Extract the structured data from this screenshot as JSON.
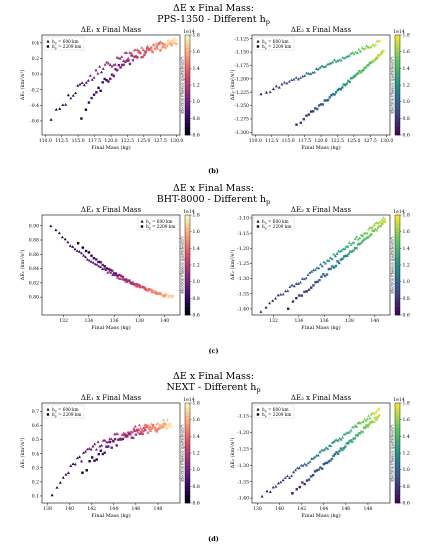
{
  "colormaps": {
    "e1": [
      "#000004",
      "#3b0f70",
      "#8c2981",
      "#de4968",
      "#fe9f6d",
      "#fcfdbf"
    ],
    "e2": [
      "#440154",
      "#3b528b",
      "#21918c",
      "#5ec962",
      "#fde725"
    ]
  },
  "panels": [
    {
      "id": "b",
      "title_line1": "ΔE x Final Mass:",
      "title_line2": "PPS-1350 - Different h",
      "title_sub": "p",
      "label": "(b)",
      "chart_data": [
        {
          "type": "scatter",
          "title": "ΔE₁ x Final Mass",
          "xlabel": "Final Mass (kg)",
          "ylabel": "ΔE₁ (km²/s²)",
          "colormap": "e1",
          "xlim": [
            109.5,
            130.5
          ],
          "ylim": [
            -0.78,
            0.5
          ],
          "xticks": [
            110,
            112.5,
            115,
            117.5,
            120,
            122.5,
            125,
            127.5,
            130
          ],
          "xtick_labels": [
            "110.0",
            "112.5",
            "115.0",
            "117.5",
            "120.0",
            "122.5",
            "125.0",
            "127.5",
            "130.0"
          ],
          "yticks": [
            -0.6,
            -0.4,
            -0.2,
            0,
            0.2,
            0.4
          ],
          "ytick_labels": [
            "-0.6",
            "-0.4",
            "-0.2",
            "0.0",
            "0.2",
            "0.4"
          ],
          "colorbar": {
            "label": "Electron Fluence (particles/m²)",
            "range": [
              0.6,
              1.8
            ],
            "ticks": [
              0.6,
              0.8,
              1.0,
              1.2,
              1.4,
              1.6,
              1.8
            ],
            "tick_labels": [
              "0.6",
              "0.8",
              "1.0",
              "1.2",
              "1.4",
              "1.6",
              "1.8"
            ],
            "exponent": "1e14"
          },
          "legend_position": "top-left",
          "series": [
            {
              "name": "h  = 600 km",
              "sub": "p",
              "marker": "triangle",
              "x0": 110.0,
              "x1": 130.0,
              "y0": -0.72,
              "y1": 0.42,
              "curve": 2.2,
              "noise": 0.04,
              "n": 72,
              "xstart": 110.5
            },
            {
              "name": "h  = 2209 km",
              "sub": "p",
              "marker": "square",
              "x0": 115.0,
              "x1": 130.0,
              "y0": -0.68,
              "y1": 0.4,
              "curve": 2.5,
              "noise": 0.04,
              "n": 60,
              "xstart": 115.2
            }
          ]
        },
        {
          "type": "scatter",
          "title": "ΔE₂ x Final Mass",
          "xlabel": "Final Mass (kg)",
          "ylabel": "ΔE₂ (km²/s²)",
          "colormap": "e2",
          "xlim": [
            109.5,
            130.5
          ],
          "ylim": [
            -1.305,
            -1.118
          ],
          "xticks": [
            110,
            112.5,
            115,
            117.5,
            120,
            122.5,
            125,
            127.5,
            130
          ],
          "xtick_labels": [
            "110.0",
            "112.5",
            "115.0",
            "117.5",
            "120.0",
            "122.5",
            "125.0",
            "127.5",
            "130.0"
          ],
          "yticks": [
            -1.3,
            -1.275,
            -1.25,
            -1.225,
            -1.2,
            -1.175,
            -1.15,
            -1.125
          ],
          "ytick_labels": [
            "-1.300",
            "-1.275",
            "-1.250",
            "-1.225",
            "-1.200",
            "-1.175",
            "-1.150",
            "-1.125"
          ],
          "colorbar": {
            "label": "Electron Fluence (particles/m²)",
            "range": [
              0.6,
              1.8
            ],
            "ticks": [
              0.6,
              0.8,
              1.0,
              1.2,
              1.4,
              1.6,
              1.8
            ],
            "tick_labels": [
              "0.6",
              "0.8",
              "1.0",
              "1.2",
              "1.4",
              "1.6",
              "1.8"
            ],
            "exponent": "1e14"
          },
          "legend_position": "top-left",
          "series": [
            {
              "name": "h  = 600 km",
              "sub": "p",
              "marker": "triangle",
              "x0": 110.5,
              "x1": 129.0,
              "y0": -1.232,
              "y1": -1.13,
              "curve": 1.0,
              "noise": 0.018,
              "n": 62,
              "xstart": 110.5
            },
            {
              "name": "h  = 2209 km",
              "sub": "p",
              "marker": "square",
              "x0": 115.0,
              "x1": 129.5,
              "y0": -1.3,
              "y1": -1.15,
              "curve": 1.0,
              "noise": 0.015,
              "n": 55,
              "xstart": 116.0
            }
          ]
        }
      ]
    },
    {
      "id": "c",
      "title_line1": "ΔE x Final Mass:",
      "title_line2": "BHT-8000 - Different h",
      "title_sub": "p",
      "label": "(c)",
      "chart_data": [
        {
          "type": "scatter",
          "title": "ΔE₁ x Final Mass",
          "xlabel": "Final Mass (kg)",
          "ylabel": "ΔE₁ (km²/s²)",
          "colormap": "e1",
          "xlim": [
            130.3,
            141.2
          ],
          "ylim": [
            0.775,
            0.915
          ],
          "xticks": [
            132,
            134,
            136,
            138,
            140
          ],
          "xtick_labels": [
            "132",
            "134",
            "136",
            "138",
            "140"
          ],
          "yticks": [
            0.8,
            0.82,
            0.84,
            0.86,
            0.88,
            0.9
          ],
          "ytick_labels": [
            "0.80",
            "0.82",
            "0.84",
            "0.86",
            "0.88",
            "0.90"
          ],
          "colorbar": {
            "label": "Electron Fluence (particles/m²)",
            "range": [
              0.6,
              1.8
            ],
            "ticks": [
              0.6,
              0.8,
              1.0,
              1.2,
              1.4,
              1.6,
              1.8
            ],
            "tick_labels": [
              "0.6",
              "0.8",
              "1.0",
              "1.2",
              "1.4",
              "1.6",
              "1.8"
            ],
            "exponent": "1e14"
          },
          "legend_position": "top-right",
          "series": [
            {
              "name": "h  = 600 km",
              "sub": "p",
              "marker": "triangle",
              "x0": 130.8,
              "x1": 140.6,
              "y0": 0.905,
              "y1": 0.8,
              "curve": 1.5,
              "noise": 0.012,
              "n": 70,
              "xstart": 130.8
            },
            {
              "name": "h  = 2209 km",
              "sub": "p",
              "marker": "square",
              "x0": 133.0,
              "x1": 140.6,
              "y0": 0.88,
              "y1": 0.8,
              "curve": 1.5,
              "noise": 0.012,
              "n": 55,
              "xstart": 133.0
            }
          ]
        },
        {
          "type": "scatter",
          "title": "ΔE₂ x Final Mass",
          "xlabel": "Final Mass (kg)",
          "ylabel": "ΔE₂ (km²/s²)",
          "colormap": "e2",
          "xlim": [
            130.3,
            141.2
          ],
          "ylim": [
            -1.42,
            -1.09
          ],
          "xticks": [
            132,
            134,
            136,
            138,
            140
          ],
          "xtick_labels": [
            "132",
            "134",
            "136",
            "138",
            "140"
          ],
          "yticks": [
            -1.4,
            -1.35,
            -1.3,
            -1.25,
            -1.2,
            -1.15,
            -1.1
          ],
          "ytick_labels": [
            "-1.40",
            "-1.35",
            "-1.30",
            "-1.25",
            "-1.20",
            "-1.15",
            "-1.10"
          ],
          "colorbar": {
            "label": "Electron Fluence (particles/m²)",
            "range": [
              0.6,
              1.8
            ],
            "ticks": [
              0.6,
              0.8,
              1.0,
              1.2,
              1.4,
              1.6,
              1.8
            ],
            "tick_labels": [
              "0.6",
              "0.8",
              "1.0",
              "1.2",
              "1.4",
              "1.6",
              "1.8"
            ],
            "exponent": "1e14"
          },
          "legend_position": "top-left",
          "series": [
            {
              "name": "h  = 600 km",
              "sub": "p",
              "marker": "triangle",
              "x0": 130.8,
              "x1": 140.8,
              "y0": -1.41,
              "y1": -1.1,
              "curve": 1.0,
              "noise": 0.02,
              "n": 70,
              "xstart": 130.8
            },
            {
              "name": "h  = 2209 km",
              "sub": "p",
              "marker": "square",
              "x0": 133.0,
              "x1": 140.8,
              "y0": -1.4,
              "y1": -1.11,
              "curve": 1.0,
              "noise": 0.02,
              "n": 55,
              "xstart": 133.0
            }
          ]
        }
      ]
    },
    {
      "id": "d",
      "title_line1": "ΔE x Final Mass:",
      "title_line2": "NEXT - Different h",
      "title_sub": "p",
      "label": "(d)",
      "chart_data": [
        {
          "type": "scatter",
          "title": "ΔE₁ x Final Mass",
          "xlabel": "Final Mass (kg)",
          "ylabel": "ΔE₁ (km²/s²)",
          "colormap": "e1",
          "xlim": [
            137.5,
            150.0
          ],
          "ylim": [
            0.05,
            0.76
          ],
          "xticks": [
            138,
            140,
            142,
            144,
            146,
            148
          ],
          "xtick_labels": [
            "138",
            "140",
            "142",
            "144",
            "146",
            "148"
          ],
          "yticks": [
            0.1,
            0.2,
            0.3,
            0.4,
            0.5,
            0.6,
            0.7
          ],
          "ytick_labels": [
            "0.1",
            "0.2",
            "0.3",
            "0.4",
            "0.5",
            "0.6",
            "0.7"
          ],
          "colorbar": {
            "label": "Electron Fluence (particles/m²)",
            "range": [
              0.6,
              1.8
            ],
            "ticks": [
              0.6,
              0.8,
              1.0,
              1.2,
              1.4,
              1.6,
              1.8
            ],
            "tick_labels": [
              "0.6",
              "0.8",
              "1.0",
              "1.2",
              "1.4",
              "1.6",
              "1.8"
            ],
            "exponent": "1e14"
          },
          "legend_position": "top-left",
          "series": [
            {
              "name": "h  = 600 km",
              "sub": "p",
              "marker": "triangle",
              "x0": 138.2,
              "x1": 149.2,
              "y0": 0.08,
              "y1": 0.62,
              "curve": 2.6,
              "noise": 0.04,
              "n": 72,
              "xstart": 138.2
            },
            {
              "name": "h  = 2209 km",
              "sub": "p",
              "marker": "square",
              "x0": 141.0,
              "x1": 149.2,
              "y0": 0.25,
              "y1": 0.6,
              "curve": 2.4,
              "noise": 0.04,
              "n": 58,
              "xstart": 141.0
            }
          ]
        },
        {
          "type": "scatter",
          "title": "ΔE₂ x Final Mass",
          "xlabel": "Final Mass (kg)",
          "ylabel": "ΔE₂ (km²/s²)",
          "colormap": "e2",
          "xlim": [
            137.5,
            150.0
          ],
          "ylim": [
            -1.415,
            -1.11
          ],
          "xticks": [
            138,
            140,
            142,
            144,
            146,
            148
          ],
          "xtick_labels": [
            "138",
            "140",
            "142",
            "144",
            "146",
            "148"
          ],
          "yticks": [
            -1.4,
            -1.35,
            -1.3,
            -1.25,
            -1.2,
            -1.15
          ],
          "ytick_labels": [
            "-1.40",
            "-1.35",
            "-1.30",
            "-1.25",
            "-1.20",
            "-1.15"
          ],
          "colorbar": {
            "label": "Electron Fluence (particles/m²)",
            "range": [
              0.6,
              1.8
            ],
            "ticks": [
              0.6,
              0.8,
              1.0,
              1.2,
              1.4,
              1.6,
              1.8
            ],
            "tick_labels": [
              "0.6",
              "0.8",
              "1.0",
              "1.2",
              "1.4",
              "1.6",
              "1.8"
            ],
            "exponent": "1e14"
          },
          "legend_position": "top-left",
          "series": [
            {
              "name": "h  = 600 km",
              "sub": "p",
              "marker": "triangle",
              "x0": 138.2,
              "x1": 149.0,
              "y0": -1.4,
              "y1": -1.13,
              "curve": 1.0,
              "noise": 0.02,
              "n": 70,
              "xstart": 138.2
            },
            {
              "name": "h  = 2209 km",
              "sub": "p",
              "marker": "square",
              "x0": 141.0,
              "x1": 149.0,
              "y0": -1.39,
              "y1": -1.15,
              "curve": 1.0,
              "noise": 0.02,
              "n": 55,
              "xstart": 141.0
            }
          ]
        }
      ]
    }
  ]
}
